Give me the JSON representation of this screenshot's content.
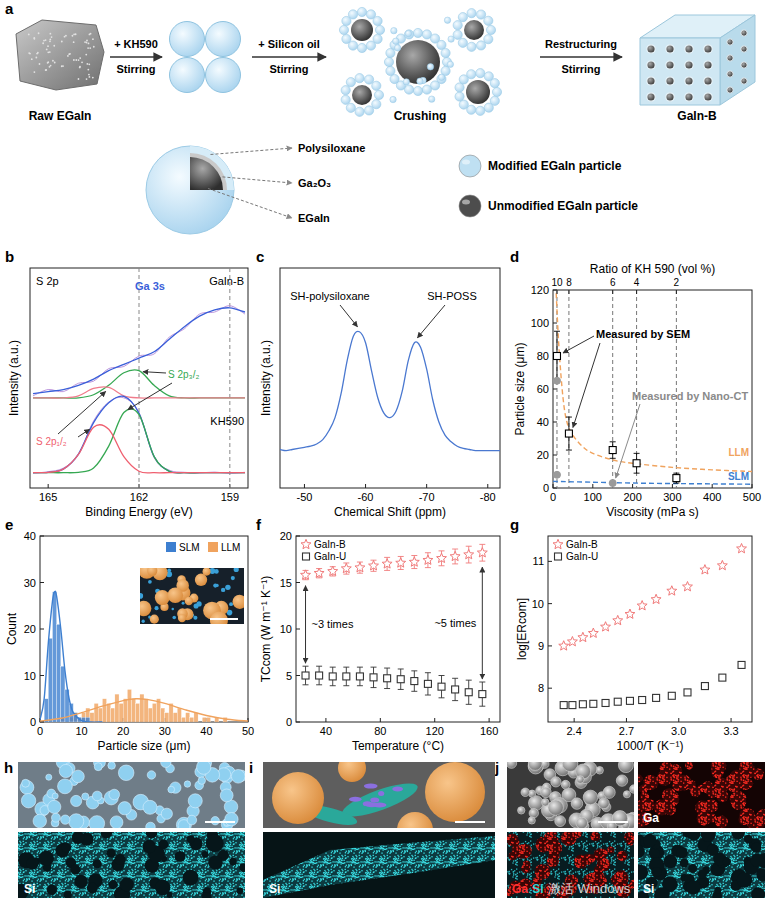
{
  "panel_labels": [
    "a",
    "b",
    "c",
    "d",
    "e",
    "f",
    "g",
    "h",
    "i",
    "j"
  ],
  "schematic": {
    "stages": {
      "raw": "Raw EGaIn",
      "crushing": "Crushing",
      "product": "GaIn-B"
    },
    "steps": [
      [
        "+ KH590",
        "Stirring"
      ],
      [
        "+ Silicon oil",
        "Stirring"
      ],
      [
        "Restructuring",
        "Stirring"
      ]
    ],
    "layers": [
      "Polysiloxane",
      "Ga₂O₃",
      "EGaIn"
    ],
    "legend": [
      {
        "text": "Modified EGaIn particle",
        "color": "#bfe0f2"
      },
      {
        "text": "Unmodified EGaIn particle",
        "color": "#4d4d4d"
      }
    ]
  },
  "chart_data": [
    {
      "type": "line",
      "x_label": "Binding Energy (eV)",
      "y_label": "Intensity (a.u.)",
      "tick_labels": "x",
      "xlim": [
        165.6,
        158.4
      ],
      "xticks": [
        165,
        162,
        159
      ],
      "ylim": [
        0,
        10.5
      ],
      "x": [
        158.5,
        159,
        159.5,
        160,
        160.5,
        161,
        161.5,
        162,
        162.5,
        163,
        163.5,
        164,
        164.5,
        165,
        165.5
      ],
      "ref_lines": [
        162,
        159
      ],
      "series": [
        {
          "color": "#b58ad8",
          "values": [
            8.3,
            8.7,
            8.4,
            8.3,
            7.6,
            7.2,
            6.4,
            6.3,
            5.8,
            5.7,
            5.1,
            5.0,
            4.6,
            4.7,
            4.4
          ]
        },
        {
          "color": "#3a5fd9",
          "values": [
            8.4,
            8.6,
            8.5,
            8.2,
            7.7,
            7.1,
            6.5,
            6.2,
            5.9,
            5.6,
            5.2,
            4.9,
            4.7,
            4.6,
            4.5
          ]
        },
        {
          "color": "#36a852",
          "values": [
            4.3,
            4.3,
            4.3,
            4.3,
            4.3,
            4.4,
            4.9,
            5.6,
            5.5,
            4.9,
            4.45,
            4.3,
            4.3,
            4.3,
            4.3
          ]
        },
        {
          "color": "#f07c8c",
          "values": [
            4.3,
            4.3,
            4.3,
            4.3,
            4.3,
            4.3,
            4.3,
            4.3,
            4.4,
            4.8,
            4.75,
            4.4,
            4.3,
            4.3,
            4.3
          ]
        },
        {
          "color": "#b58ad8",
          "values": [
            0.75,
            0.7,
            0.76,
            0.72,
            0.75,
            0.85,
            1.45,
            3.6,
            4.3,
            4.1,
            3.2,
            1.6,
            0.95,
            0.78,
            0.7
          ]
        },
        {
          "color": "#3a5fd9",
          "values": [
            0.73,
            0.73,
            0.73,
            0.73,
            0.73,
            0.8,
            1.5,
            3.57,
            4.37,
            4.07,
            3.12,
            1.62,
            0.9,
            0.75,
            0.73
          ]
        },
        {
          "color": "#36a852",
          "values": [
            0.73,
            0.73,
            0.73,
            0.73,
            0.73,
            0.8,
            1.5,
            3.5,
            3.6,
            2.0,
            0.95,
            0.75,
            0.73,
            0.73,
            0.73
          ]
        },
        {
          "color": "#ef5f6f",
          "values": [
            0.73,
            0.73,
            0.73,
            0.73,
            0.73,
            0.73,
            0.73,
            0.8,
            1.5,
            2.8,
            2.9,
            1.6,
            0.9,
            0.75,
            0.73
          ]
        }
      ],
      "annotations": [
        {
          "text": "S 2p"
        },
        {
          "text": "Ga 3s",
          "color": "#3a5fd9"
        },
        {
          "text": "GaIn-B"
        },
        {
          "text": "KH590"
        },
        {
          "text": "S 2p₁/₂",
          "color": "#ef5f6f"
        },
        {
          "text": "S 2p₃/₂",
          "color": "#36a852"
        }
      ]
    },
    {
      "type": "line",
      "x_label": "Chemical Shift (ppm)",
      "y_label": "Intensity (a.u.)",
      "tick_labels": "x",
      "xlim": [
        -46,
        -82
      ],
      "xticks": [
        -50,
        -60,
        -70,
        -80
      ],
      "ylim": [
        0,
        10
      ],
      "x": [
        -46,
        -47,
        -48,
        -49,
        -50,
        -51,
        -52,
        -53,
        -54,
        -55,
        -56,
        -57,
        -58,
        -59,
        -60,
        -61,
        -62,
        -63,
        -64,
        -65,
        -66,
        -67,
        -68,
        -69,
        -70,
        -71,
        -72,
        -73,
        -74,
        -75,
        -76,
        -77,
        -78,
        -79,
        -80,
        -81,
        -82
      ],
      "series": [
        {
          "color": "#4a78d0",
          "values": [
            1.75,
            1.7,
            1.75,
            1.8,
            1.85,
            1.9,
            2.0,
            2.2,
            2.6,
            3.2,
            4.3,
            5.8,
            6.9,
            7.1,
            6.6,
            5.3,
            4.1,
            3.4,
            3.2,
            3.5,
            4.4,
            5.8,
            6.6,
            6.4,
            5.4,
            4.0,
            3.0,
            2.4,
            2.1,
            1.9,
            1.8,
            1.75,
            1.7,
            1.7,
            1.7,
            1.7,
            1.7
          ]
        }
      ],
      "annotations": [
        {
          "text": "SH-polysiloxane"
        },
        {
          "text": "SH-POSS"
        }
      ]
    },
    {
      "type": "scatter",
      "x_label": "Viscosity (mPa s)",
      "y_label": "Particle size (μm)",
      "x2_label": "Ratio of KH 590 (vol %)",
      "xlim": [
        0,
        500
      ],
      "xticks": [
        0,
        100,
        200,
        300,
        400,
        500
      ],
      "ylim": [
        0,
        120
      ],
      "yticks": [
        0,
        20,
        40,
        60,
        80,
        100,
        120
      ],
      "x2ticks": [
        {
          "value": 10,
          "label": "10"
        },
        {
          "value": 40,
          "label": "8"
        },
        {
          "value": 150,
          "label": "6"
        },
        {
          "value": 210,
          "label": "4"
        },
        {
          "value": 310,
          "label": "2"
        }
      ],
      "series": [
        {
          "color": "#000000",
          "marker": "square",
          "x": [
            10,
            40,
            150,
            210,
            310
          ],
          "values": [
            80,
            33,
            23,
            15,
            6
          ],
          "error": [
            15,
            10,
            5,
            6,
            3
          ]
        },
        {
          "color": "#9a9a9a",
          "marker": "circle",
          "x": [
            10,
            10,
            150
          ],
          "values": [
            65,
            8,
            3
          ]
        },
        {
          "name": "LLM",
          "type": "line",
          "line_style": "dashed",
          "color": "#f0a35e",
          "x": [
            8,
            15,
            25,
            35,
            50,
            75,
            100,
            150,
            200,
            300,
            400,
            500
          ],
          "values": [
            118,
            85,
            55,
            40,
            32,
            25,
            21,
            17,
            15,
            12.5,
            11,
            10
          ]
        },
        {
          "name": "SLM",
          "type": "line",
          "line_style": "dashed",
          "color": "#3d7fd0",
          "x": [
            0,
            100,
            200,
            300,
            400,
            500
          ],
          "values": [
            4,
            3.5,
            3,
            2.7,
            2.5,
            2.3
          ]
        }
      ],
      "annotations": [
        {
          "text": "Measured by SEM"
        },
        {
          "text": "Measured by Nano-CT",
          "color": "#8a8a8a"
        }
      ]
    },
    {
      "type": "histogram",
      "x_label": "Particle size (μm)",
      "y_label": "Count",
      "xlim": [
        0,
        50
      ],
      "xticks": [
        0,
        10,
        20,
        30,
        40,
        50
      ],
      "ylim": [
        0,
        40
      ],
      "yticks": [
        0,
        10,
        20,
        30,
        40
      ],
      "legend": "top-right",
      "series": [
        {
          "name": "SLM",
          "color": "#3d7fd0",
          "bins": [
            0,
            1,
            2,
            3,
            4,
            5,
            6,
            7,
            8,
            9,
            10,
            11,
            12
          ],
          "values": [
            0,
            5,
            18,
            28,
            21,
            12,
            7,
            4,
            2,
            1,
            1,
            1
          ],
          "fit_x": [
            0,
            1,
            2,
            3,
            3.5,
            4,
            5,
            6,
            7,
            8,
            10,
            12,
            15
          ],
          "fit_values": [
            0.5,
            5,
            17,
            26,
            28,
            27,
            20,
            11,
            5,
            2,
            0.3,
            0,
            0
          ]
        },
        {
          "name": "LLM",
          "color": "#f0a35e",
          "bins": [
            5,
            6,
            7,
            8,
            9,
            10,
            11,
            12,
            13,
            14,
            15,
            16,
            17,
            18,
            19,
            20,
            21,
            22,
            23,
            24,
            25,
            26,
            27,
            28,
            29,
            30,
            31,
            32,
            33,
            34,
            35,
            36,
            37,
            38,
            39,
            40,
            41,
            42,
            43,
            44,
            45
          ],
          "values": [
            1,
            0,
            1,
            2,
            1,
            2,
            3,
            2,
            4,
            3,
            5,
            4,
            3,
            6,
            4,
            5,
            7,
            5,
            4,
            6,
            5,
            3,
            4,
            5,
            3,
            2,
            4,
            2,
            3,
            1,
            2,
            1,
            2,
            0,
            1,
            1,
            0,
            1,
            0,
            1
          ],
          "fit_x": [
            0,
            5,
            10,
            15,
            20,
            23,
            26,
            30,
            35,
            40,
            45,
            50
          ],
          "fit_values": [
            0.2,
            0.8,
            2,
            3.4,
            4.6,
            5,
            4.8,
            4,
            2.6,
            1.4,
            0.6,
            0.2
          ]
        }
      ]
    },
    {
      "type": "scatter",
      "x_label": "Temperature (°C)",
      "y_label": "TCcom (W m⁻¹ K⁻¹)",
      "xlim": [
        18,
        168
      ],
      "xticks": [
        40,
        80,
        120,
        160
      ],
      "ylim": [
        0,
        20
      ],
      "yticks": [
        0,
        5,
        10,
        15,
        20
      ],
      "legend": "top-left",
      "x": [
        25,
        35,
        45,
        55,
        65,
        75,
        85,
        95,
        105,
        115,
        125,
        135,
        145,
        155
      ],
      "series": [
        {
          "name": "GaIn-B",
          "color": "#f07a7a",
          "marker": "star",
          "values": [
            15.8,
            16.0,
            16.2,
            16.5,
            16.6,
            16.8,
            17.0,
            17.1,
            17.2,
            17.4,
            17.6,
            17.8,
            18.0,
            18.2
          ],
          "error": [
            0.5,
            0.5,
            0.5,
            0.6,
            0.6,
            0.6,
            0.7,
            0.7,
            0.7,
            0.8,
            0.8,
            0.8,
            0.9,
            0.9
          ]
        },
        {
          "name": "GaIn-U",
          "color": "#333333",
          "marker": "square",
          "values": [
            5.0,
            5.0,
            4.9,
            4.9,
            4.9,
            4.8,
            4.7,
            4.6,
            4.4,
            4.1,
            3.8,
            3.5,
            3.2,
            3.0
          ],
          "error": [
            1.0,
            1.0,
            1.0,
            1.0,
            1.0,
            1.1,
            1.1,
            1.1,
            1.1,
            1.2,
            1.2,
            1.2,
            1.3,
            1.3
          ]
        }
      ],
      "annotations": [
        {
          "text": "~3 times"
        },
        {
          "text": "~5 times"
        }
      ]
    },
    {
      "type": "scatter",
      "x_label": "1000/T (K⁻¹)",
      "y_label": "log[ERcom]",
      "xlim": [
        2.25,
        3.42
      ],
      "xticks": [
        2.4,
        2.7,
        {
          "value": 3,
          "label": "3.0"
        },
        3.3
      ],
      "ylim": [
        7.2,
        11.6
      ],
      "yticks": [
        8,
        9,
        10,
        11
      ],
      "legend": "top-left",
      "x": [
        2.34,
        2.39,
        2.45,
        2.51,
        2.58,
        2.65,
        2.72,
        2.79,
        2.87,
        2.96,
        3.05,
        3.15,
        3.25,
        3.36
      ],
      "series": [
        {
          "name": "GaIn-B",
          "color": "#f07a7a",
          "marker": "star",
          "values": [
            9.0,
            9.1,
            9.2,
            9.3,
            9.45,
            9.6,
            9.75,
            9.95,
            10.1,
            10.3,
            10.4,
            10.8,
            10.9,
            11.3
          ]
        },
        {
          "name": "GaIn-U",
          "color": "#333333",
          "marker": "square",
          "values": [
            7.6,
            7.6,
            7.62,
            7.63,
            7.65,
            7.68,
            7.7,
            7.72,
            7.77,
            7.82,
            7.9,
            8.05,
            8.25,
            8.55
          ]
        }
      ]
    }
  ],
  "micrographs": [
    {
      "labels": [
        {
          "texts": [
            "Si"
          ],
          "colors": [
            "#ffffff"
          ]
        }
      ]
    },
    {
      "labels": [
        {
          "texts": [
            "Si"
          ],
          "colors": [
            "#ffffff"
          ]
        }
      ]
    },
    {
      "labels": [
        {
          "texts": [
            "Ga"
          ],
          "colors": [
            "#ffffff"
          ]
        },
        {
          "texts": [
            "Ga",
            "Si"
          ],
          "colors": [
            "#ff3030",
            "#2fd6d6"
          ]
        },
        {
          "texts": [
            "Si"
          ],
          "colors": [
            "#ffffff"
          ]
        }
      ]
    }
  ],
  "watermark": "激活 Windows"
}
